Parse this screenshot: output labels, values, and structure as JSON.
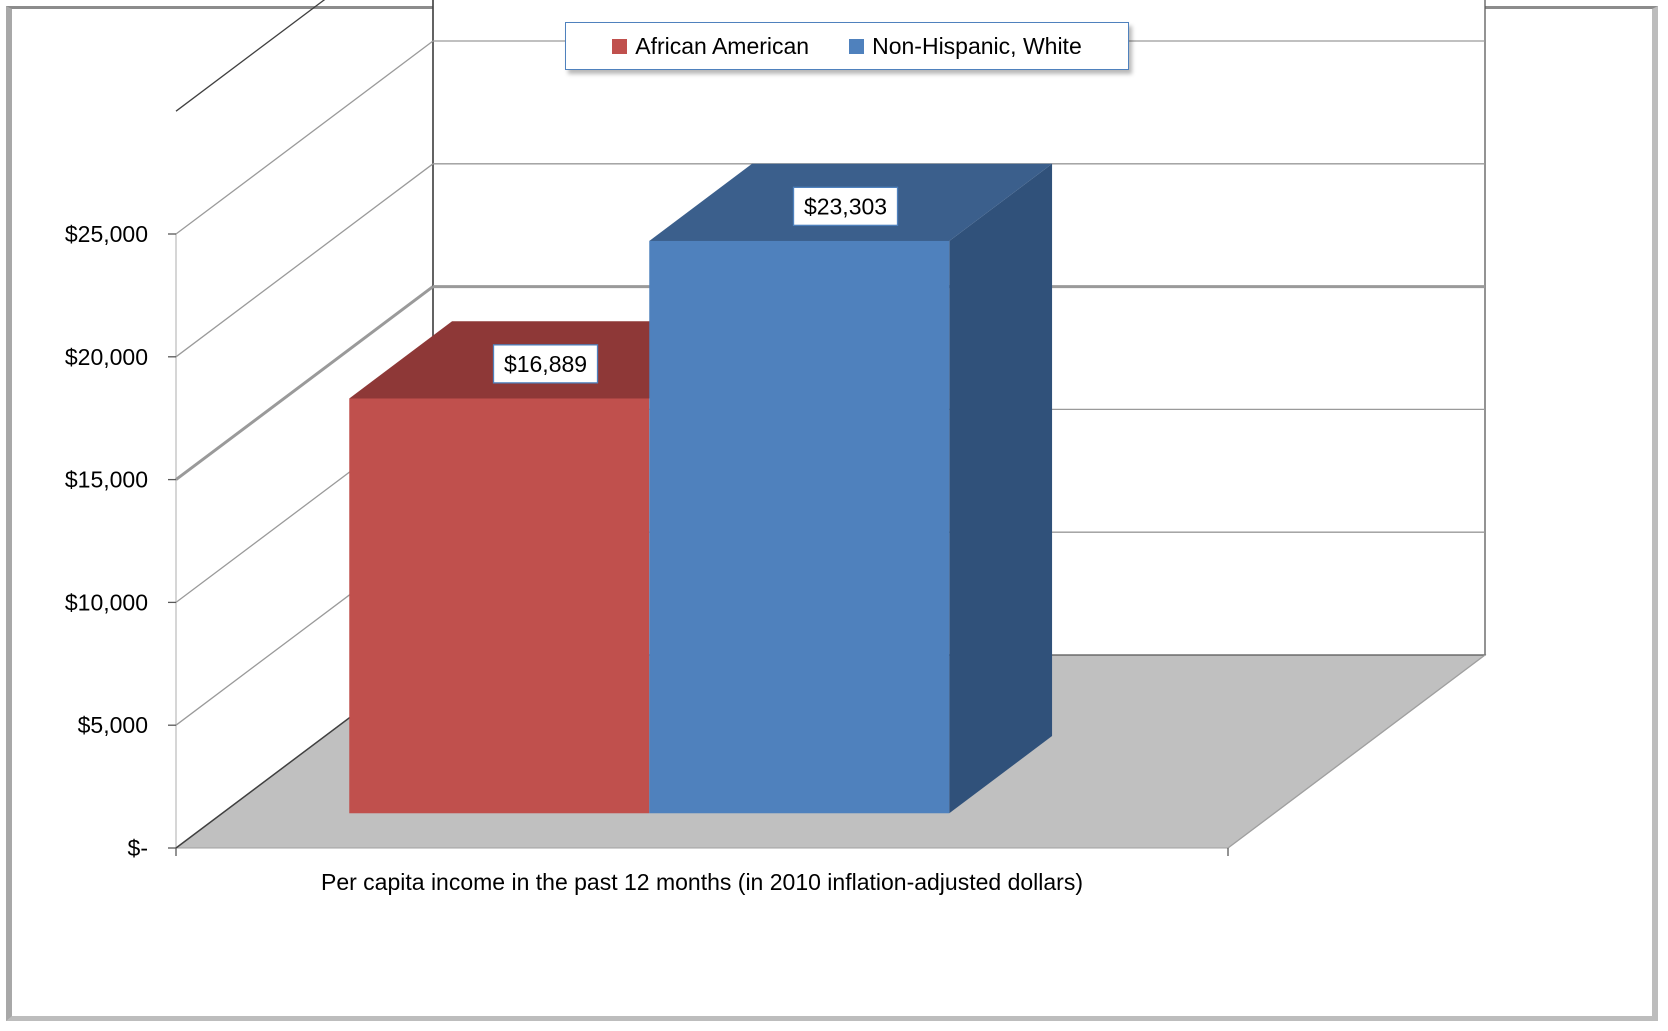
{
  "chart_data": {
    "type": "bar",
    "subtype": "3d-clustered-column",
    "categories": [
      "Per capita income in the past 12 months (in 2010 inflation-adjusted dollars)"
    ],
    "series": [
      {
        "name": "African American",
        "values": [
          16889
        ],
        "label": "$16,889",
        "color": "#c0504d",
        "top_color": "#8e3837"
      },
      {
        "name": "Non-Hispanic, White",
        "values": [
          23303
        ],
        "label": "$23,303",
        "color": "#4f81bd",
        "top_color": "#3b5f8c",
        "side_color": "#30517a"
      }
    ],
    "title": "",
    "xlabel": "",
    "ylabel": "",
    "ylim": [
      0,
      25000
    ],
    "yticks": [
      {
        "value": 0,
        "label": "$-"
      },
      {
        "value": 5000,
        "label": "$5,000"
      },
      {
        "value": 10000,
        "label": "$10,000"
      },
      {
        "value": 15000,
        "label": "$15,000"
      },
      {
        "value": 20000,
        "label": "$20,000"
      },
      {
        "value": 25000,
        "label": "$25,000"
      }
    ],
    "grid": true,
    "legend_position": "top"
  }
}
